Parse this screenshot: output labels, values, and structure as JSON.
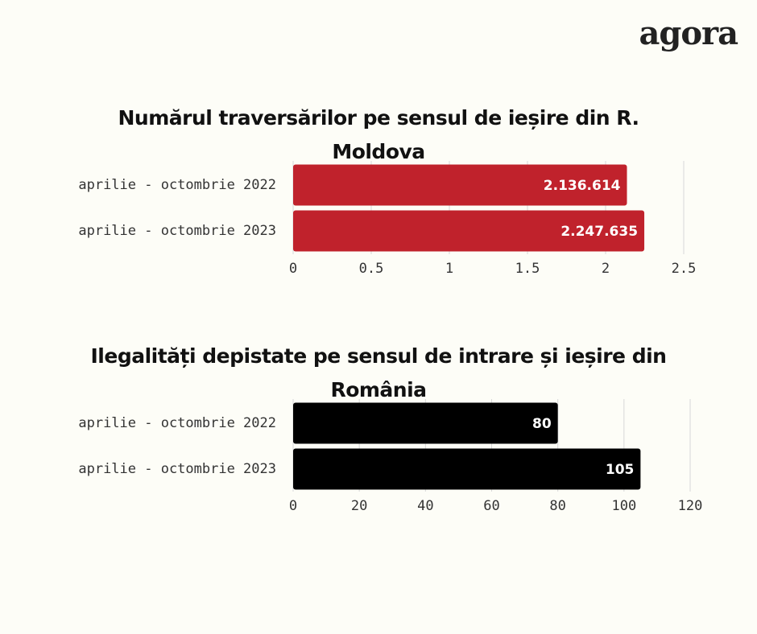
{
  "logo": "agora",
  "chart_data": [
    {
      "type": "bar",
      "orientation": "horizontal",
      "title": "Numărul traversărilor pe sensul de ieșire din R. Moldova",
      "categories": [
        "aprilie - octombrie 2022",
        "aprilie - octombrie 2023"
      ],
      "values": [
        2.136614,
        2.247635
      ],
      "value_labels": [
        "2.136.614",
        "2.247.635"
      ],
      "color": "#c0222c",
      "xlim": [
        0,
        2.5
      ],
      "xticks": [
        0,
        0.5,
        1,
        1.5,
        2,
        2.5
      ],
      "grid": true
    },
    {
      "type": "bar",
      "orientation": "horizontal",
      "title": "Ilegalități depistate pe sensul de intrare și ieșire din România",
      "categories": [
        "aprilie - octombrie 2022",
        "aprilie - octombrie 2023"
      ],
      "values": [
        80,
        105
      ],
      "color": "#000000",
      "xlim": [
        0,
        120
      ],
      "xticks": [
        0,
        20,
        40,
        60,
        80,
        100,
        120
      ],
      "grid": true
    }
  ]
}
